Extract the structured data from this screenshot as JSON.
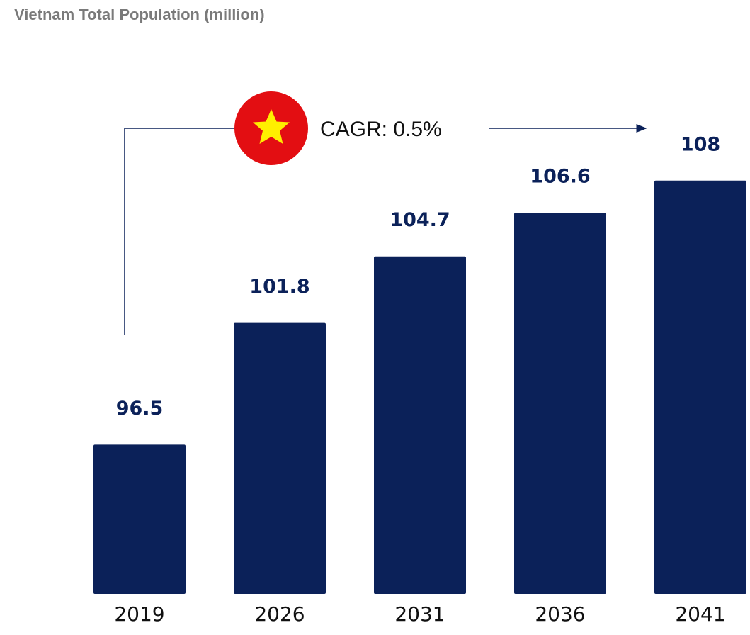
{
  "chart_data": {
    "type": "bar",
    "title": "Vietnam Total Population (million)",
    "annotation": "CAGR: 0.5%",
    "categories": [
      "2019",
      "2026",
      "2031",
      "2036",
      "2041"
    ],
    "values": [
      96.5,
      101.8,
      104.7,
      106.6,
      108
    ],
    "color": "#0b2159",
    "ylim": [
      90,
      110
    ]
  }
}
